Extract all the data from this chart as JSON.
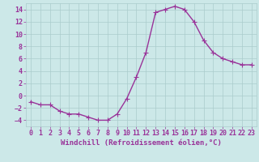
{
  "x": [
    0,
    1,
    2,
    3,
    4,
    5,
    6,
    7,
    8,
    9,
    10,
    11,
    12,
    13,
    14,
    15,
    16,
    17,
    18,
    19,
    20,
    21,
    22,
    23
  ],
  "y": [
    -1.0,
    -1.5,
    -1.5,
    -2.5,
    -3.0,
    -3.0,
    -3.5,
    -4.0,
    -4.0,
    -3.0,
    -0.5,
    3.0,
    7.0,
    13.5,
    14.0,
    14.5,
    14.0,
    12.0,
    9.0,
    7.0,
    6.0,
    5.5,
    5.0,
    5.0
  ],
  "line_color": "#993399",
  "marker": "+",
  "marker_size": 4,
  "bg_color": "#cce8e8",
  "grid_color": "#aacccc",
  "xlabel": "Windchill (Refroidissement éolien,°C)",
  "xlabel_color": "#993399",
  "tick_label_color": "#993399",
  "ylim": [
    -5,
    15
  ],
  "yticks": [
    -4,
    -2,
    0,
    2,
    4,
    6,
    8,
    10,
    12,
    14
  ],
  "xlim": [
    -0.5,
    23.5
  ],
  "xticks": [
    0,
    1,
    2,
    3,
    4,
    5,
    6,
    7,
    8,
    9,
    10,
    11,
    12,
    13,
    14,
    15,
    16,
    17,
    18,
    19,
    20,
    21,
    22,
    23
  ],
  "font_size": 6,
  "xlabel_fontsize": 6.5,
  "linewidth": 1.0,
  "markeredgewidth": 0.8
}
